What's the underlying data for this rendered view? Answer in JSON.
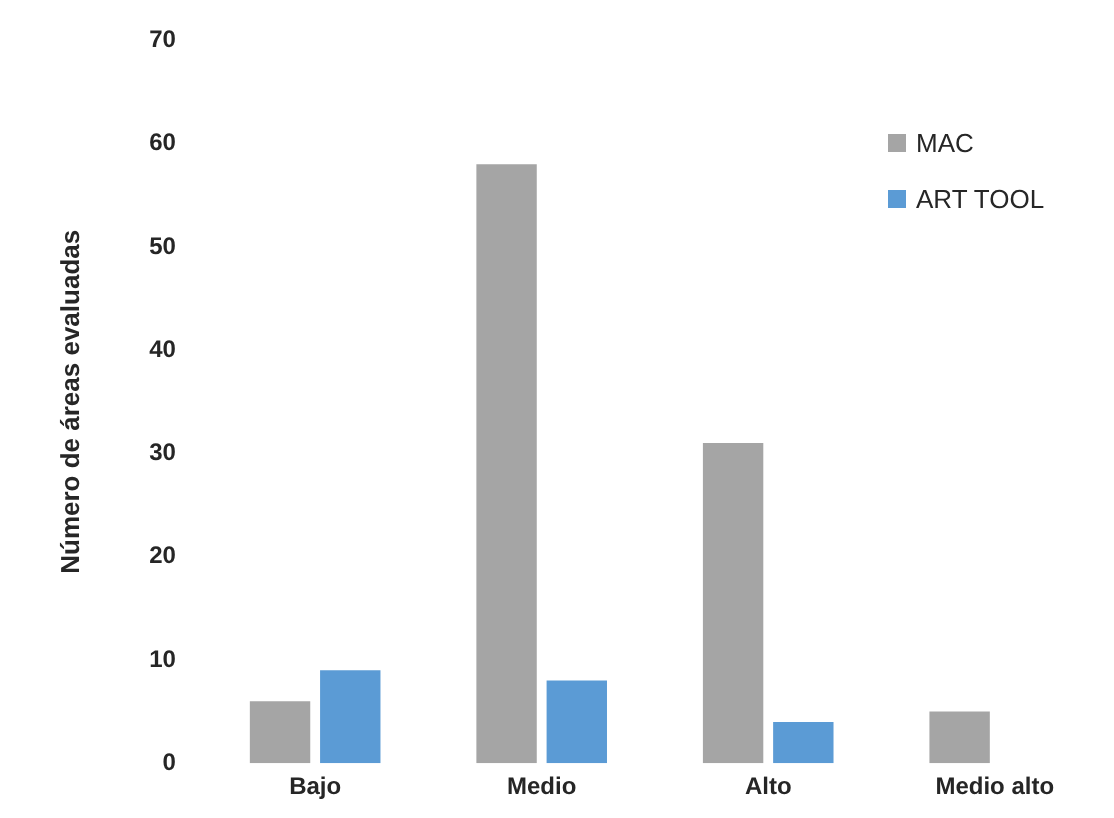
{
  "chart_data": {
    "type": "bar",
    "ylabel": "Número de áreas evaluadas",
    "categories": [
      "Bajo",
      "Medio",
      "Alto",
      "Medio alto"
    ],
    "series": [
      {
        "name": "MAC",
        "color": "#a5a5a5",
        "values": [
          6,
          58,
          31,
          5
        ]
      },
      {
        "name": "ART TOOL",
        "color": "#5b9bd5",
        "values": [
          9,
          8,
          4,
          null
        ]
      }
    ],
    "ylim": [
      0,
      70
    ],
    "yticks": [
      0,
      10,
      20,
      30,
      40,
      50,
      60,
      70
    ],
    "legend": "top right"
  }
}
